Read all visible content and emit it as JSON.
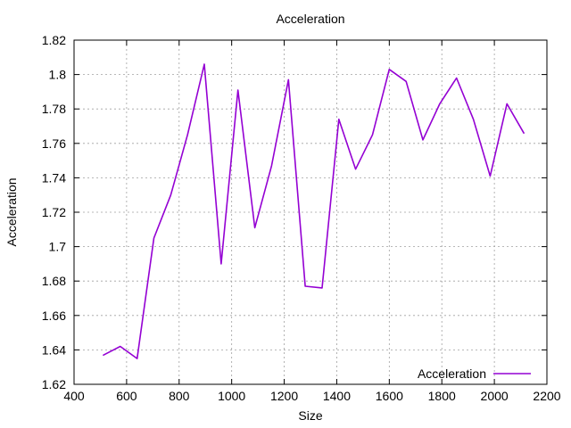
{
  "chart_data": {
    "type": "line",
    "title": "Acceleration",
    "xlabel": "Size",
    "ylabel": "Acceleration",
    "xlim": [
      400,
      2200
    ],
    "ylim": [
      1.62,
      1.82
    ],
    "x_ticks": [
      400,
      600,
      800,
      1000,
      1200,
      1400,
      1600,
      1800,
      2000,
      2200
    ],
    "x_tick_labels": [
      "400",
      "600",
      "800",
      "1000",
      "1200",
      "1400",
      "1600",
      "1800",
      "2000",
      "2200"
    ],
    "y_ticks": [
      1.62,
      1.64,
      1.66,
      1.68,
      1.7,
      1.72,
      1.74,
      1.76,
      1.78,
      1.8,
      1.82
    ],
    "y_tick_labels": [
      "1.62",
      "1.64",
      "1.66",
      "1.68",
      "1.7",
      "1.72",
      "1.74",
      "1.76",
      "1.78",
      "1.8",
      "1.82"
    ],
    "grid": true,
    "legend_position": "bottom-right",
    "series": [
      {
        "name": "Acceleration",
        "color": "#9400d3",
        "x": [
          512,
          576,
          640,
          704,
          768,
          832,
          896,
          960,
          1024,
          1088,
          1152,
          1216,
          1280,
          1344,
          1408,
          1472,
          1536,
          1600,
          1664,
          1728,
          1792,
          1856,
          1920,
          1984,
          2048,
          2112
        ],
        "y": [
          1.637,
          1.642,
          1.635,
          1.705,
          1.73,
          1.765,
          1.806,
          1.69,
          1.791,
          1.711,
          1.747,
          1.797,
          1.677,
          1.676,
          1.774,
          1.745,
          1.765,
          1.803,
          1.796,
          1.762,
          1.783,
          1.798,
          1.774,
          1.741,
          1.783,
          1.766
        ]
      }
    ]
  }
}
